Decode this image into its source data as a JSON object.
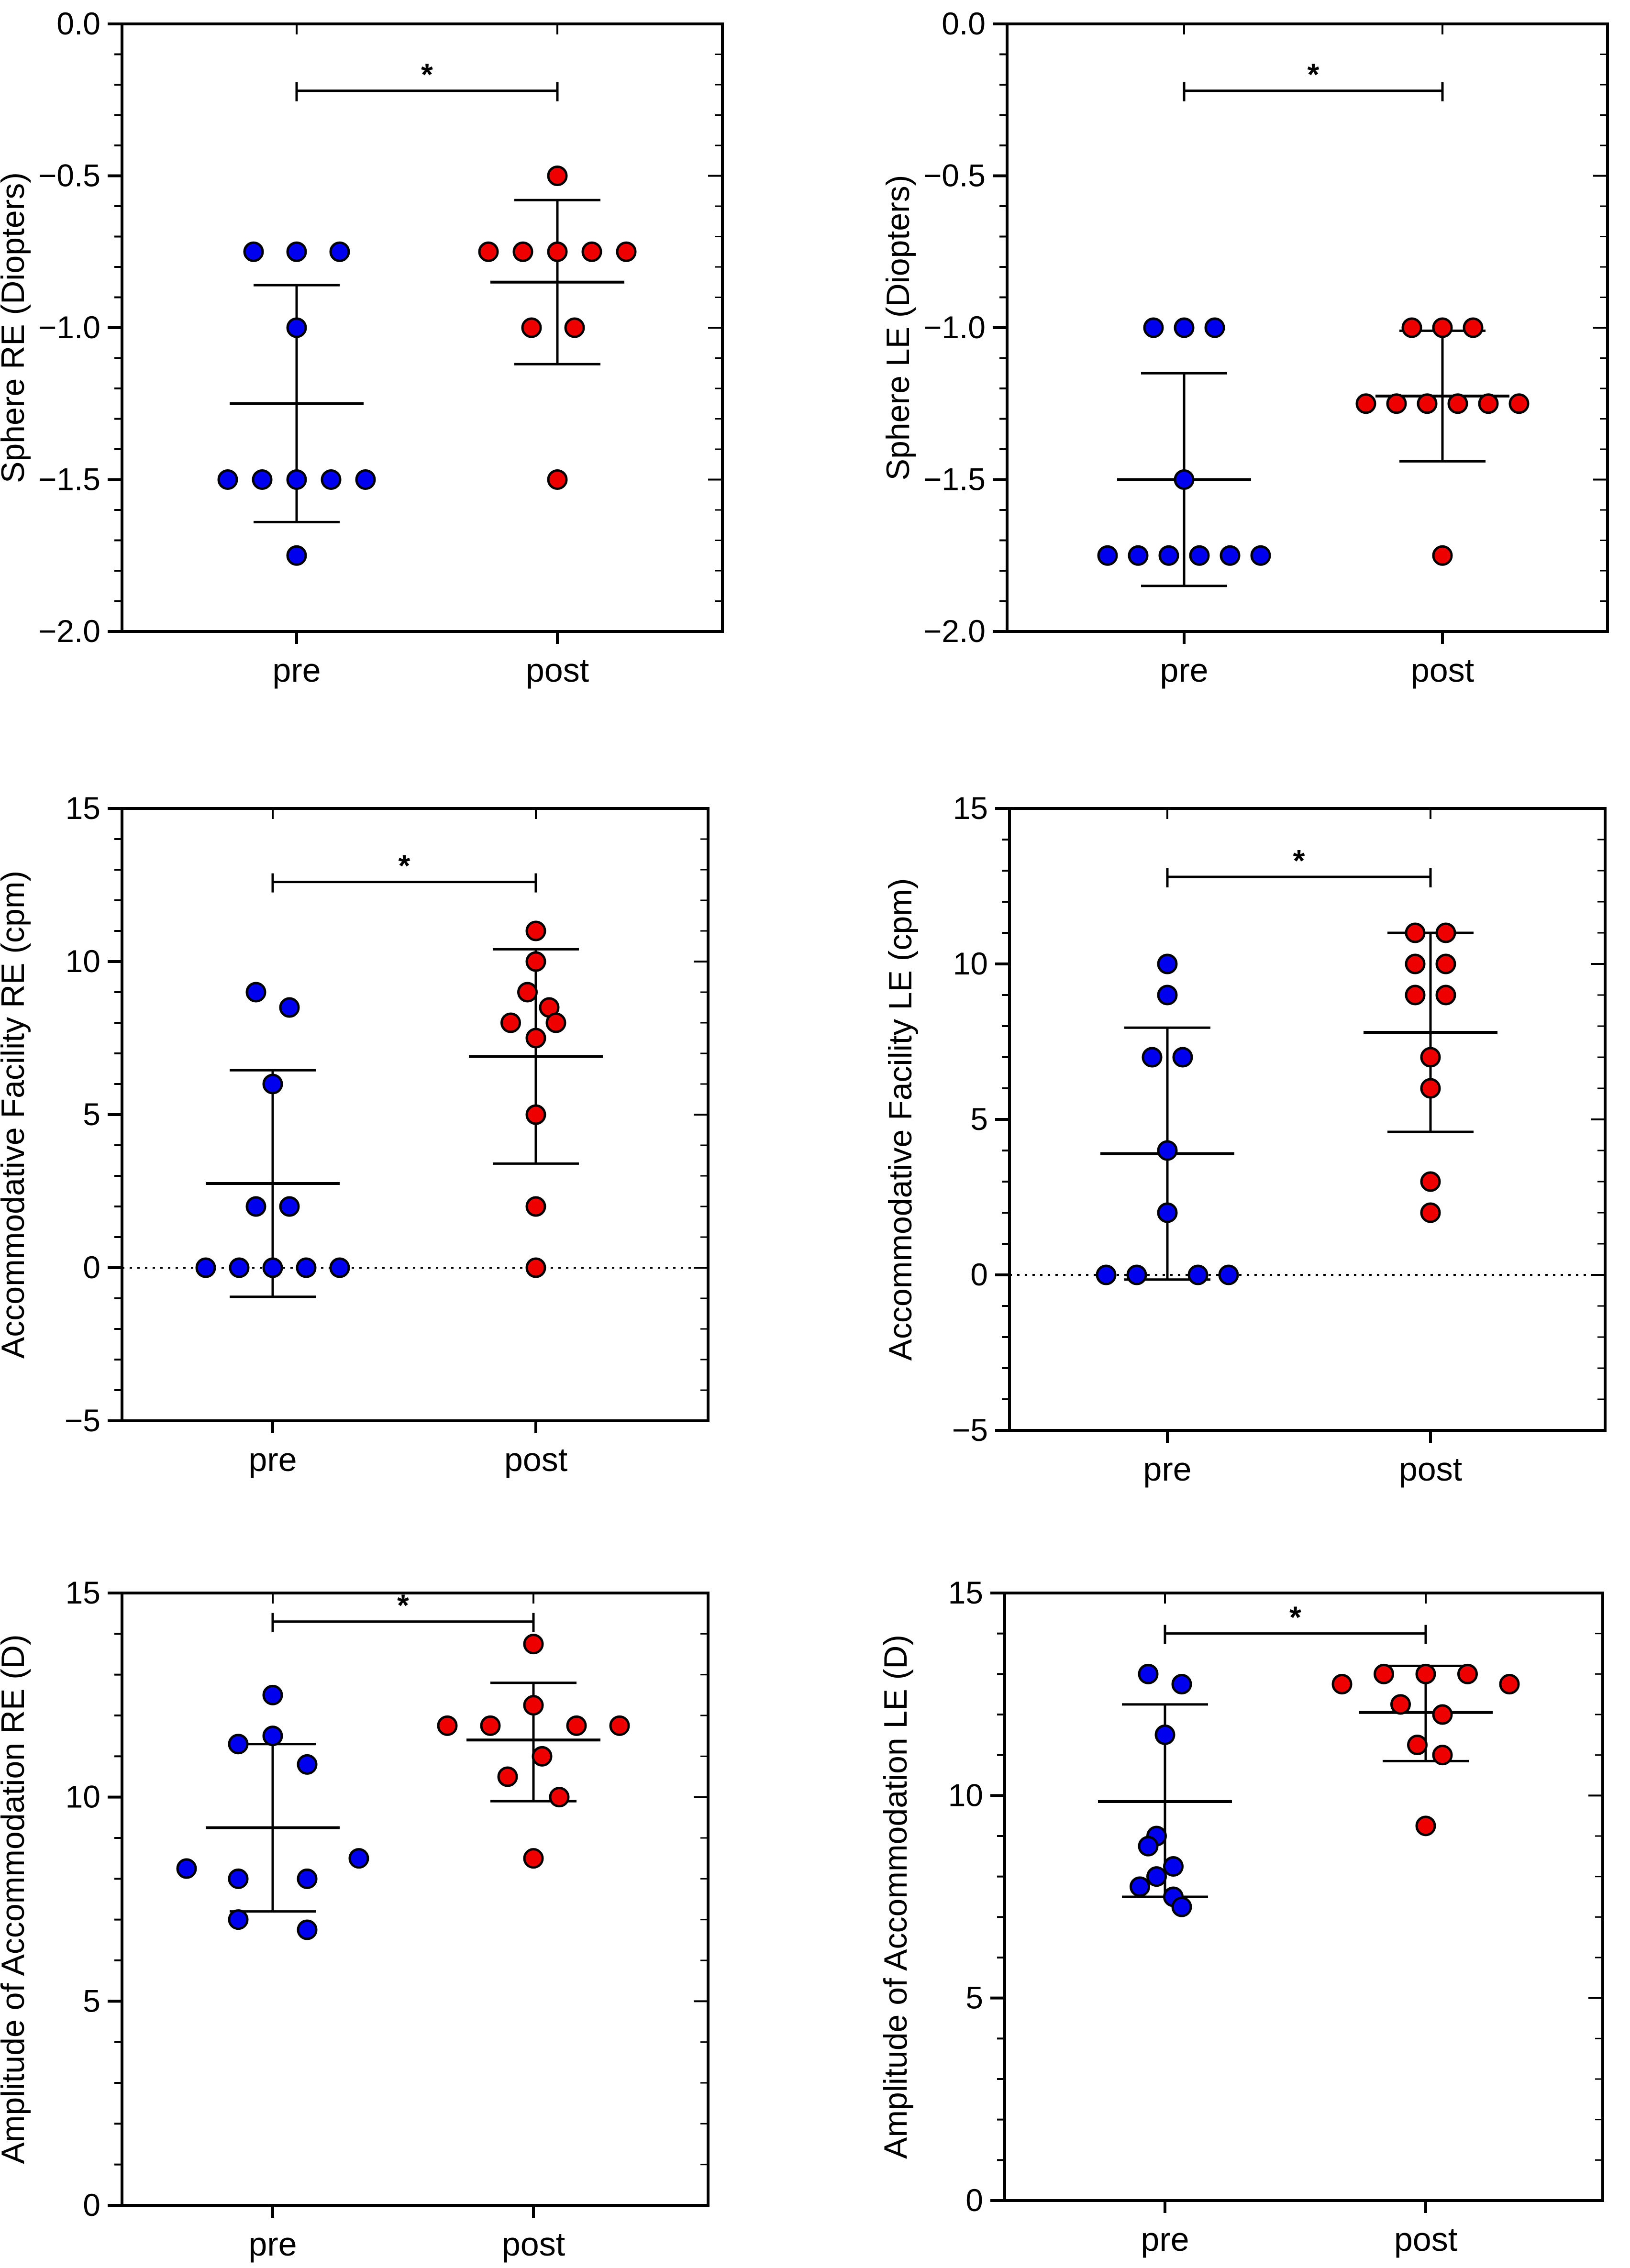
{
  "colors": {
    "pre": "#0000ee",
    "post": "#ee0000",
    "stroke": "#000000"
  },
  "chart_data": [
    {
      "type": "scatter",
      "title": "",
      "ylabel": "Sphere RE (Diopters)",
      "categories": [
        "pre",
        "post"
      ],
      "ylim": [
        -2.0,
        0.0
      ],
      "yticks": [
        -2.0,
        -1.5,
        -1.0,
        -0.5,
        0.0
      ],
      "ytick_labels": [
        "−2.0",
        "−1.5",
        "−1.0",
        "−0.5",
        "0.0"
      ],
      "zero_line": false,
      "grid": false,
      "series": [
        {
          "name": "pre",
          "points": [
            [
              -0.25,
              -0.75
            ],
            [
              0,
              -0.75
            ],
            [
              0.25,
              -0.75
            ],
            [
              0,
              -1.0
            ],
            [
              -0.4,
              -1.5
            ],
            [
              -0.2,
              -1.5
            ],
            [
              0,
              -1.5
            ],
            [
              0.2,
              -1.5
            ],
            [
              0.4,
              -1.5
            ],
            [
              0,
              -1.75
            ]
          ],
          "mean": -1.25,
          "error_low": -1.64,
          "error_high": -0.86
        },
        {
          "name": "post",
          "points": [
            [
              0,
              -0.5
            ],
            [
              -0.4,
              -0.75
            ],
            [
              -0.2,
              -0.75
            ],
            [
              0,
              -0.75
            ],
            [
              0.2,
              -0.75
            ],
            [
              0.4,
              -0.75
            ],
            [
              -0.15,
              -1.0
            ],
            [
              0.1,
              -1.0
            ],
            [
              0,
              -1.5
            ]
          ],
          "mean": -0.85,
          "error_low": -1.12,
          "error_high": -0.58
        }
      ],
      "significance": {
        "label": "*",
        "y": -0.22
      }
    },
    {
      "type": "scatter",
      "title": "",
      "ylabel": "Sphere LE (Diopters)",
      "categories": [
        "pre",
        "post"
      ],
      "ylim": [
        -2.0,
        0.0
      ],
      "yticks": [
        -2.0,
        -1.5,
        -1.0,
        -0.5,
        0.0
      ],
      "ytick_labels": [
        "−2.0",
        "−1.5",
        "−1.0",
        "−0.5",
        "0.0"
      ],
      "zero_line": false,
      "grid": false,
      "series": [
        {
          "name": "pre",
          "points": [
            [
              -0.2,
              -1.0
            ],
            [
              0,
              -1.0
            ],
            [
              0.2,
              -1.0
            ],
            [
              0,
              -1.5
            ],
            [
              -0.5,
              -1.75
            ],
            [
              -0.3,
              -1.75
            ],
            [
              -0.1,
              -1.75
            ],
            [
              0.1,
              -1.75
            ],
            [
              0.3,
              -1.75
            ],
            [
              0.5,
              -1.75
            ]
          ],
          "mean": -1.5,
          "error_low": -1.85,
          "error_high": -1.15
        },
        {
          "name": "post",
          "points": [
            [
              -0.2,
              -1.0
            ],
            [
              0,
              -1.0
            ],
            [
              0.2,
              -1.0
            ],
            [
              -0.5,
              -1.25
            ],
            [
              -0.3,
              -1.25
            ],
            [
              -0.1,
              -1.25
            ],
            [
              0.1,
              -1.25
            ],
            [
              0.3,
              -1.25
            ],
            [
              0.5,
              -1.25
            ],
            [
              0,
              -1.75
            ]
          ],
          "mean": -1.225,
          "error_low": -1.44,
          "error_high": -1.01
        }
      ],
      "significance": {
        "label": "*",
        "y": -0.22
      }
    },
    {
      "type": "scatter",
      "title": "",
      "ylabel": "Accommodative Facility RE (cpm)",
      "categories": [
        "pre",
        "post"
      ],
      "ylim": [
        -5,
        15
      ],
      "yticks": [
        -5,
        0,
        5,
        10,
        15
      ],
      "ytick_labels": [
        "−5",
        "0",
        "5",
        "10",
        "15"
      ],
      "zero_line": true,
      "grid": false,
      "series": [
        {
          "name": "pre",
          "points": [
            [
              -0.1,
              9
            ],
            [
              0.1,
              8.5
            ],
            [
              0,
              6
            ],
            [
              -0.1,
              2
            ],
            [
              0.1,
              2
            ],
            [
              -0.4,
              0
            ],
            [
              -0.2,
              0
            ],
            [
              0,
              0
            ],
            [
              0.2,
              0
            ],
            [
              0.4,
              0
            ]
          ],
          "mean": 2.75,
          "error_low": -0.95,
          "error_high": 6.45
        },
        {
          "name": "post",
          "points": [
            [
              0,
              11
            ],
            [
              0,
              10
            ],
            [
              -0.05,
              9
            ],
            [
              0.08,
              8.5
            ],
            [
              -0.15,
              8
            ],
            [
              0.12,
              8
            ],
            [
              0,
              7.5
            ],
            [
              0,
              5
            ],
            [
              0,
              2
            ],
            [
              0,
              0
            ]
          ],
          "mean": 6.9,
          "error_low": 3.4,
          "error_high": 10.4
        }
      ],
      "significance": {
        "label": "*",
        "y": 12.6
      }
    },
    {
      "type": "scatter",
      "title": "",
      "ylabel": "Accommodative Facility LE (cpm)",
      "categories": [
        "pre",
        "post"
      ],
      "ylim": [
        -5,
        15
      ],
      "yticks": [
        -5,
        0,
        5,
        10,
        15
      ],
      "ytick_labels": [
        "−5",
        "0",
        "5",
        "10",
        "15"
      ],
      "zero_line": true,
      "grid": false,
      "series": [
        {
          "name": "pre",
          "points": [
            [
              0,
              10
            ],
            [
              0,
              9
            ],
            [
              -0.1,
              7
            ],
            [
              0.1,
              7
            ],
            [
              0,
              4
            ],
            [
              0,
              2
            ],
            [
              -0.4,
              0
            ],
            [
              -0.2,
              0
            ],
            [
              0.2,
              0
            ],
            [
              0.4,
              0
            ]
          ],
          "mean": 3.9,
          "error_low": -0.15,
          "error_high": 7.95
        },
        {
          "name": "post",
          "points": [
            [
              -0.1,
              11
            ],
            [
              0.1,
              11
            ],
            [
              -0.1,
              10
            ],
            [
              0.1,
              10
            ],
            [
              -0.1,
              9
            ],
            [
              0.1,
              9
            ],
            [
              0,
              7
            ],
            [
              0,
              6
            ],
            [
              0,
              3
            ],
            [
              0,
              2
            ]
          ],
          "mean": 7.8,
          "error_low": 4.6,
          "error_high": 11.0
        }
      ],
      "significance": {
        "label": "*",
        "y": 12.8
      }
    },
    {
      "type": "scatter",
      "title": "",
      "ylabel": "Amplitude of Accommodation RE (D)",
      "categories": [
        "pre",
        "post"
      ],
      "ylim": [
        0,
        15
      ],
      "yticks": [
        0,
        5,
        10,
        15
      ],
      "ytick_labels": [
        "0",
        "5",
        "10",
        "15"
      ],
      "zero_line": false,
      "grid": false,
      "series": [
        {
          "name": "pre",
          "points": [
            [
              0,
              12.5
            ],
            [
              -0.2,
              11.3
            ],
            [
              0,
              11.5
            ],
            [
              0.2,
              10.8
            ],
            [
              -0.5,
              8.25
            ],
            [
              -0.2,
              8.0
            ],
            [
              0.2,
              8.0
            ],
            [
              0.5,
              8.5
            ],
            [
              -0.2,
              7.0
            ],
            [
              0.2,
              6.75
            ]
          ],
          "mean": 9.25,
          "error_low": 7.2,
          "error_high": 11.3
        },
        {
          "name": "post",
          "points": [
            [
              0,
              13.75
            ],
            [
              -0.5,
              11.75
            ],
            [
              -0.25,
              11.75
            ],
            [
              0.25,
              11.75
            ],
            [
              0.5,
              11.75
            ],
            [
              0,
              12.25
            ],
            [
              -0.15,
              10.5
            ],
            [
              0.05,
              11.0
            ],
            [
              0.15,
              10.0
            ],
            [
              0,
              8.5
            ]
          ],
          "mean": 11.4,
          "error_low": 9.9,
          "error_high": 12.8
        }
      ],
      "significance": {
        "label": "*",
        "y": 14.3
      }
    },
    {
      "type": "scatter",
      "title": "",
      "ylabel": "Amplitude of Accommodation LE (D)",
      "categories": [
        "pre",
        "post"
      ],
      "ylim": [
        0,
        15
      ],
      "yticks": [
        0,
        5,
        10,
        15
      ],
      "ytick_labels": [
        "0",
        "5",
        "10",
        "15"
      ],
      "zero_line": false,
      "grid": false,
      "series": [
        {
          "name": "pre",
          "points": [
            [
              -0.1,
              13.0
            ],
            [
              0.1,
              12.75
            ],
            [
              0,
              11.5
            ],
            [
              -0.05,
              9.0
            ],
            [
              -0.1,
              8.75
            ],
            [
              0.05,
              8.25
            ],
            [
              -0.05,
              8.0
            ],
            [
              -0.15,
              7.75
            ],
            [
              0.05,
              7.5
            ],
            [
              0.1,
              7.25
            ]
          ],
          "mean": 9.85,
          "error_low": 7.5,
          "error_high": 12.25
        },
        {
          "name": "post",
          "points": [
            [
              -0.5,
              12.75
            ],
            [
              -0.25,
              13.0
            ],
            [
              0,
              13.0
            ],
            [
              0.25,
              13.0
            ],
            [
              0.5,
              12.75
            ],
            [
              -0.15,
              12.25
            ],
            [
              0.1,
              12.0
            ],
            [
              -0.05,
              11.25
            ],
            [
              0.1,
              11.0
            ],
            [
              0,
              9.25
            ]
          ],
          "mean": 12.05,
          "error_low": 10.85,
          "error_high": 13.2
        }
      ],
      "significance": {
        "label": "*",
        "y": 14.0
      }
    }
  ]
}
